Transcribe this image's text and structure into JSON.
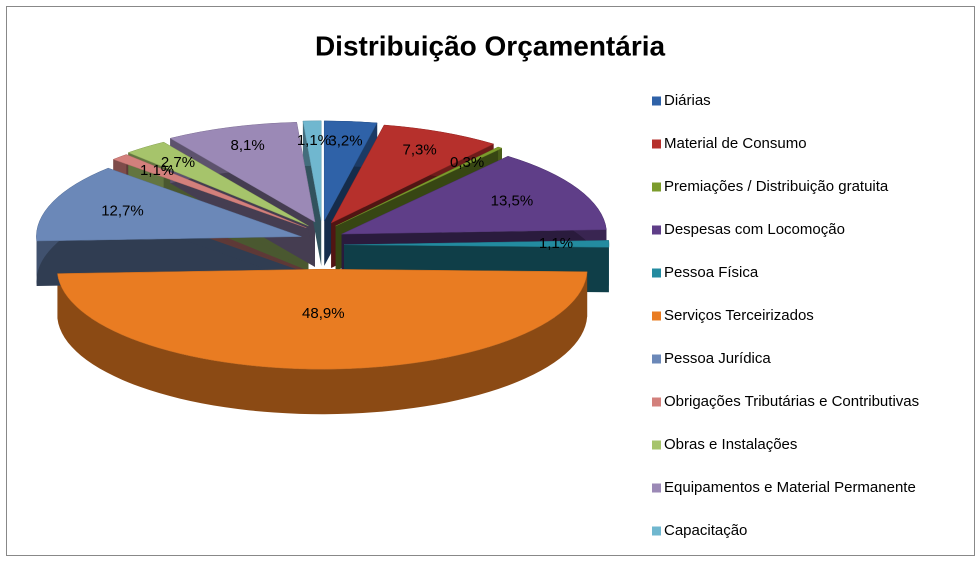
{
  "chart_data": {
    "type": "pie",
    "title": "Distribuição Orçamentária",
    "categories": [
      "Diárias",
      "Material de Consumo",
      "Premiações / Distribuição gratuita",
      "Despesas com Locomoção",
      "Pessoa Física",
      "Serviços Terceirizados",
      "Pessoa Jurídica",
      "Obrigações Tributárias e Contributivas",
      "Obras e Instalações",
      "Equipamentos e Material Permanente",
      "Capacitação"
    ],
    "values": [
      3.2,
      7.3,
      0.3,
      13.5,
      1.1,
      48.9,
      12.7,
      1.1,
      2.7,
      8.1,
      1.1
    ],
    "value_labels": [
      "3,2%",
      "7,3%",
      "0,3%",
      "13,5%",
      "1,1%",
      "48,9%",
      "12,7%",
      "1,1%",
      "2,7%",
      "8,1%",
      "1,1%"
    ],
    "colors": [
      "#2f62a8",
      "#b6302c",
      "#7c9c2c",
      "#5f3e88",
      "#238ba0",
      "#e97c22",
      "#6b88b8",
      "#d3807c",
      "#a6c46b",
      "#9b89b6",
      "#70b7cf"
    ],
    "legend": "right"
  }
}
